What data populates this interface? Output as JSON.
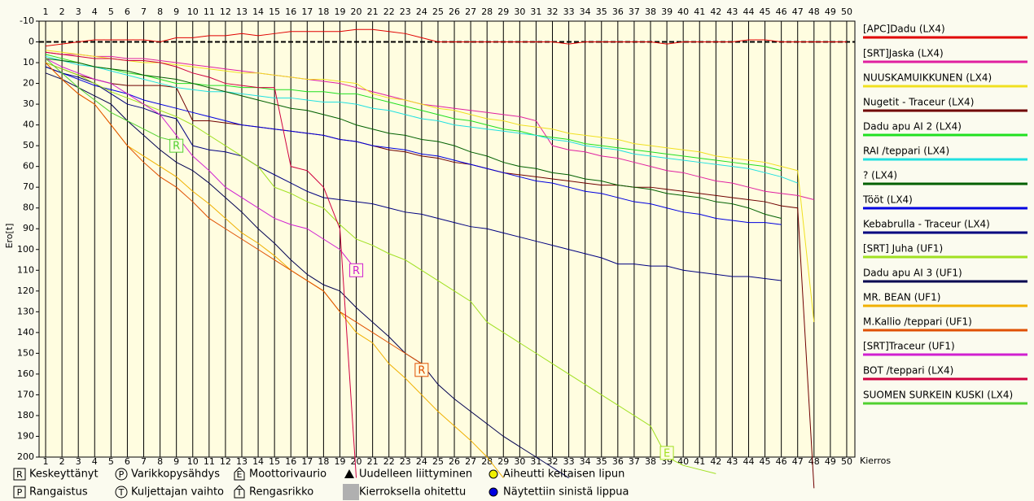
{
  "chart_data": {
    "type": "line",
    "y_label": "Ero[t]",
    "x_label": "Kierros",
    "x": [
      1,
      2,
      3,
      4,
      5,
      6,
      7,
      8,
      9,
      10,
      11,
      12,
      13,
      14,
      15,
      16,
      17,
      18,
      19,
      20,
      21,
      22,
      23,
      24,
      25,
      26,
      27,
      28,
      29,
      30,
      31,
      32,
      33,
      34,
      35,
      36,
      37,
      38,
      39,
      40,
      41,
      42,
      43,
      44,
      45,
      46,
      47,
      48,
      49,
      50
    ],
    "xlim": [
      0.6,
      50.5
    ],
    "xticks": [
      1,
      2,
      3,
      4,
      5,
      6,
      7,
      8,
      9,
      10,
      11,
      12,
      13,
      14,
      15,
      16,
      17,
      18,
      19,
      20,
      21,
      22,
      23,
      24,
      25,
      26,
      27,
      28,
      29,
      30,
      31,
      32,
      33,
      34,
      35,
      36,
      37,
      38,
      39,
      40,
      41,
      42,
      43,
      44,
      45,
      46,
      47,
      48,
      49,
      50
    ],
    "ylim": [
      -10,
      200
    ],
    "y_inverted": true,
    "yticks": [
      -10,
      0,
      10,
      20,
      30,
      40,
      50,
      60,
      70,
      80,
      90,
      100,
      110,
      120,
      130,
      140,
      150,
      160,
      170,
      180,
      190,
      200
    ],
    "reference_line": 0,
    "series": [
      {
        "name": "[APC]Dadu (LX4)",
        "color": "#e00000",
        "values": [
          2,
          1,
          0,
          -1,
          -1,
          -1,
          -1,
          0,
          -2,
          -2,
          -3,
          -3,
          -4,
          -3,
          -4,
          -5,
          -5,
          -5,
          -5,
          -6,
          -6,
          -5,
          -4,
          -2,
          0,
          0,
          0,
          0,
          0,
          0,
          0,
          0,
          1,
          0,
          0,
          0,
          0,
          0,
          1,
          0,
          0,
          0,
          0,
          -1,
          -1,
          0,
          0,
          0,
          0,
          0
        ]
      },
      {
        "name": "[SRT]Jaska (LX4)",
        "color": "#e020a0",
        "values": [
          5,
          6,
          6,
          7,
          7,
          8,
          8,
          9,
          10,
          11,
          12,
          13,
          14,
          15,
          16,
          17,
          18,
          19,
          20,
          22,
          24,
          26,
          28,
          30,
          31,
          32,
          33,
          34,
          35,
          36,
          38,
          50,
          52,
          53,
          55,
          56,
          58,
          60,
          62,
          63,
          65,
          67,
          68,
          70,
          72,
          73,
          74,
          76,
          null,
          null
        ]
      },
      {
        "name": "NUUSKAMUIKKUNEN (LX4)",
        "color": "#f0e020",
        "values": [
          4,
          5,
          6,
          7,
          8,
          9,
          10,
          10,
          11,
          12,
          13,
          14,
          15,
          15,
          16,
          17,
          18,
          18,
          19,
          20,
          25,
          27,
          28,
          30,
          32,
          33,
          35,
          37,
          38,
          40,
          41,
          42,
          44,
          45,
          46,
          47,
          49,
          50,
          51,
          52,
          53,
          55,
          56,
          57,
          58,
          60,
          62,
          135,
          null,
          null
        ]
      },
      {
        "name": "Nugetit - Traceur (LX4)",
        "color": "#700000",
        "values": [
          10,
          13,
          16,
          18,
          20,
          21,
          21,
          21,
          22,
          38,
          38,
          39,
          40,
          41,
          42,
          43,
          44,
          45,
          47,
          48,
          50,
          52,
          53,
          55,
          56,
          58,
          59,
          61,
          63,
          64,
          65,
          66,
          67,
          68,
          69,
          69,
          70,
          70,
          71,
          72,
          73,
          74,
          75,
          76,
          77,
          79,
          80,
          215,
          null,
          null
        ]
      },
      {
        "name": "Dadu apu AI 2 (LX4)",
        "color": "#20e020",
        "values": [
          6,
          8,
          10,
          12,
          13,
          15,
          16,
          18,
          20,
          20,
          21,
          21,
          22,
          22,
          23,
          23,
          24,
          24,
          25,
          25,
          27,
          29,
          31,
          33,
          35,
          37,
          38,
          40,
          42,
          43,
          45,
          46,
          47,
          49,
          50,
          51,
          52,
          53,
          54,
          55,
          56,
          57,
          58,
          59,
          60,
          62,
          null,
          null,
          null,
          null
        ]
      },
      {
        "name": "RAI /teppari (LX4)",
        "color": "#20e0e0",
        "values": [
          7,
          9,
          11,
          12,
          14,
          16,
          18,
          20,
          22,
          23,
          24,
          24,
          25,
          26,
          27,
          27,
          28,
          29,
          29,
          30,
          32,
          33,
          35,
          37,
          38,
          40,
          41,
          42,
          43,
          44,
          45,
          47,
          48,
          50,
          51,
          52,
          54,
          55,
          56,
          57,
          58,
          59,
          60,
          61,
          63,
          65,
          68,
          null,
          null,
          null
        ]
      },
      {
        "name": "? (LX4)",
        "color": "#006000",
        "values": [
          8,
          9,
          10,
          12,
          13,
          14,
          16,
          17,
          18,
          20,
          22,
          24,
          26,
          28,
          30,
          32,
          33,
          35,
          37,
          40,
          42,
          44,
          45,
          47,
          48,
          50,
          53,
          55,
          58,
          60,
          61,
          63,
          64,
          66,
          67,
          69,
          70,
          71,
          73,
          74,
          75,
          77,
          78,
          80,
          83,
          85,
          null,
          null,
          null,
          null
        ]
      },
      {
        "name": "Tööt (LX4)",
        "color": "#0000e0",
        "values": [
          12,
          15,
          18,
          21,
          23,
          25,
          28,
          30,
          32,
          34,
          36,
          38,
          40,
          41,
          42,
          43,
          44,
          45,
          47,
          48,
          50,
          51,
          52,
          54,
          55,
          57,
          59,
          61,
          63,
          65,
          67,
          68,
          70,
          72,
          73,
          75,
          77,
          78,
          80,
          82,
          83,
          85,
          86,
          87,
          87,
          88,
          null,
          null,
          null,
          null
        ]
      },
      {
        "name": "Kebabrulla - Traceur (LX4)",
        "color": "#000080",
        "values": [
          12,
          15,
          17,
          20,
          25,
          30,
          32,
          35,
          37,
          50,
          52,
          53,
          55,
          60,
          64,
          68,
          72,
          75,
          76,
          77,
          78,
          80,
          82,
          83,
          85,
          87,
          89,
          90,
          92,
          94,
          96,
          98,
          100,
          102,
          104,
          107,
          107,
          108,
          108,
          110,
          111,
          112,
          113,
          113,
          114,
          115,
          null,
          null,
          null,
          null
        ]
      },
      {
        "name": "[SRT] Juha (UF1)",
        "color": "#a0e020",
        "values": [
          10,
          13,
          16,
          20,
          24,
          27,
          30,
          33,
          36,
          40,
          45,
          50,
          55,
          60,
          70,
          73,
          77,
          80,
          88,
          95,
          98,
          102,
          105,
          110,
          115,
          120,
          125,
          135,
          140,
          145,
          150,
          155,
          160,
          165,
          170,
          175,
          180,
          185,
          200,
          204,
          206,
          208,
          null,
          null,
          null,
          null,
          null,
          null,
          null,
          null
        ]
      },
      {
        "name": "Dadu apu AI 3 (UF1)",
        "color": "#000050",
        "values": [
          15,
          18,
          22,
          26,
          30,
          38,
          45,
          52,
          58,
          62,
          68,
          75,
          82,
          90,
          97,
          105,
          112,
          117,
          120,
          128,
          135,
          142,
          150,
          155,
          165,
          172,
          178,
          184,
          190,
          195,
          200,
          205,
          210,
          null,
          null,
          null,
          null,
          null,
          null,
          null,
          null,
          null,
          null,
          null,
          null,
          null,
          null,
          null,
          null,
          null
        ]
      },
      {
        "name": "MR. BEAN (UF1)",
        "color": "#f0b000",
        "values": [
          10,
          18,
          25,
          30,
          40,
          50,
          55,
          60,
          65,
          72,
          78,
          85,
          92,
          97,
          103,
          110,
          115,
          120,
          130,
          140,
          145,
          155,
          162,
          170,
          178,
          185,
          192,
          200,
          210,
          null,
          null,
          null,
          null,
          null,
          null,
          null,
          null,
          null,
          null,
          null,
          null,
          null,
          null,
          null,
          null,
          null,
          null,
          null,
          null,
          null
        ]
      },
      {
        "name": "M.Kallio /teppari (UF1)",
        "color": "#e05000",
        "values": [
          10,
          18,
          25,
          30,
          40,
          50,
          58,
          65,
          70,
          77,
          85,
          90,
          95,
          100,
          105,
          110,
          115,
          120,
          130,
          135,
          140,
          145,
          150,
          155,
          null,
          null,
          null,
          null,
          null,
          null,
          null,
          null,
          null,
          null,
          null,
          null,
          null,
          null,
          null,
          null,
          null,
          null,
          null,
          null,
          null,
          null,
          null,
          null,
          null,
          null
        ]
      },
      {
        "name": "[SRT]Traceur (UF1)",
        "color": "#d020d0",
        "values": [
          8,
          12,
          15,
          18,
          20,
          25,
          30,
          35,
          45,
          55,
          62,
          70,
          75,
          80,
          85,
          88,
          90,
          95,
          100,
          110,
          null,
          null,
          null,
          null,
          null,
          null,
          null,
          null,
          null,
          null,
          null,
          null,
          null,
          null,
          null,
          null,
          null,
          null,
          null,
          null,
          null,
          null,
          null,
          null,
          null,
          null,
          null,
          null,
          null,
          null
        ]
      },
      {
        "name": "BOT /teppari (LX4)",
        "color": "#d00040",
        "values": [
          5,
          6,
          7,
          8,
          8,
          9,
          9,
          10,
          12,
          15,
          17,
          20,
          21,
          22,
          22,
          60,
          62,
          70,
          90,
          210,
          null,
          null,
          null,
          null,
          null,
          null,
          null,
          null,
          null,
          null,
          null,
          null,
          null,
          null,
          null,
          null,
          null,
          null,
          null,
          null,
          null,
          null,
          null,
          null,
          null,
          null,
          null,
          null,
          null,
          null
        ]
      },
      {
        "name": "SUOMEN SURKEIN KUSKI (LX4)",
        "color": "#50d030",
        "values": [
          8,
          15,
          22,
          28,
          34,
          38,
          42,
          46,
          48,
          null,
          null,
          null,
          null,
          null,
          null,
          null,
          null,
          null,
          null,
          null,
          null,
          null,
          null,
          null,
          null,
          null,
          null,
          null,
          null,
          null,
          null,
          null,
          null,
          null,
          null,
          null,
          null,
          null,
          null,
          null,
          null,
          null,
          null,
          null,
          null,
          null,
          null,
          null,
          null,
          null
        ]
      }
    ],
    "annotations": [
      {
        "x": 9,
        "y": 50,
        "label": "R",
        "color": "#50d030"
      },
      {
        "x": 20,
        "y": 110,
        "label": "R",
        "color": "#d020d0"
      },
      {
        "x": 24,
        "y": 158,
        "label": "R",
        "color": "#e05000"
      },
      {
        "x": 39,
        "y": 198,
        "label": "E",
        "color": "#a0e020"
      }
    ],
    "symbol_legend": [
      {
        "symbol": "R",
        "text": "Keskeyttänyt"
      },
      {
        "symbol": "P",
        "text": "Varikkopysähdys"
      },
      {
        "symbol": "E",
        "text": "Moottorivaurio"
      },
      {
        "symbol": "",
        "text": "Uudelleen liittyminen"
      },
      {
        "symbol": "",
        "text": "Aiheutti keltaisen lipun"
      },
      {
        "symbol": "P",
        "text": "Rangaistus"
      },
      {
        "symbol": "T",
        "text": "Kuljettajan vaihto"
      },
      {
        "symbol": "T",
        "text": "Rengasrikko"
      },
      {
        "symbol": "",
        "text": "Kierroksella ohitettu"
      },
      {
        "symbol": "",
        "text": "Näytettiin sinistä lippua"
      }
    ]
  }
}
